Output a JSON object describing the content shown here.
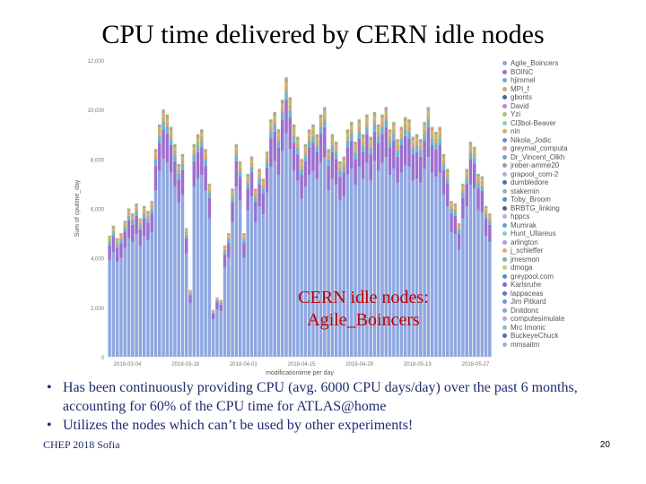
{
  "slide": {
    "title": "CPU time delivered by CERN idle nodes",
    "overlay_label": "CERN idle nodes:\nAgile_Boincers",
    "bullets": [
      "Has been continuously providing CPU (avg. 6000 CPU days/day) over the past 6 months, accounting for 60% of the CPU time for ATLAS@home",
      "Utilizes the nodes which can’t be used by other experiments!"
    ],
    "footer": "CHEP 2018 Sofia",
    "page_number": "20"
  },
  "chart_data": {
    "type": "bar",
    "stacked": true,
    "xlabel": "modificationtime per day",
    "ylabel": "Sum of cputime_day",
    "ylim": [
      0,
      12000
    ],
    "yticks": [
      "0",
      "2,000",
      "4,000",
      "6,000",
      "8,000",
      "10,000",
      "12,000"
    ],
    "xtick_labels": [
      "2018-03-04",
      "2018-03-18",
      "2018-04-01",
      "2018-04-15",
      "2018-04-29",
      "2018-05-13",
      "2018-05-27"
    ],
    "grid": false,
    "legend_position": "right",
    "bar_totals": [
      4900,
      5300,
      4800,
      5000,
      5500,
      6000,
      5800,
      6200,
      5600,
      6100,
      5900,
      6300,
      8400,
      9400,
      10000,
      9800,
      9300,
      8600,
      7800,
      8200,
      5200,
      2700,
      8600,
      9000,
      9200,
      8400,
      7000,
      1900,
      2400,
      2300,
      4500,
      5000,
      6800,
      8600,
      7900,
      5000,
      7400,
      8100,
      6800,
      7600,
      7200,
      8300,
      9600,
      9900,
      9200,
      10400,
      11300,
      10500,
      9400,
      8900,
      8000,
      8600,
      9200,
      9400,
      9000,
      9800,
      10100,
      8400,
      9000,
      8700,
      7900,
      8100,
      9200,
      9500,
      8700,
      9600,
      9000,
      9800,
      8900,
      9900,
      9400,
      9800,
      10100,
      9200,
      9500,
      8800,
      9300,
      9700,
      9600,
      8900,
      9000,
      8800,
      9500,
      10100,
      9300,
      9100,
      9300,
      8200,
      7600,
      6300,
      6200,
      5400,
      7000,
      7600,
      8700,
      8500,
      7400,
      7300,
      6100,
      5800
    ],
    "series_colors": [
      "#8fa7e0",
      "#9b6fcf",
      "#6fb3c6",
      "#d9a36a",
      "#b0c46a",
      "#e28a8a",
      "#7dc78a"
    ],
    "legend": [
      {
        "name": "Agile_Boincers",
        "color": "#8fa7e0"
      },
      {
        "name": "BOINC",
        "color": "#9b6fcf"
      },
      {
        "name": "hjimmel",
        "color": "#6fb3c6"
      },
      {
        "name": "MPI_f",
        "color": "#d9a36a"
      },
      {
        "name": "gbonts",
        "color": "#3a6ea5"
      },
      {
        "name": "David",
        "color": "#c084d6"
      },
      {
        "name": "Yzi",
        "color": "#b0c46a"
      },
      {
        "name": "Cl3bol-Beaver",
        "color": "#8fd0c4"
      },
      {
        "name": "nin",
        "color": "#e2a56b"
      },
      {
        "name": "Nikola_Jodic",
        "color": "#6b8fd6"
      },
      {
        "name": "greymal_computa",
        "color": "#d98fa0"
      },
      {
        "name": "Dr_Vincent_Olkh",
        "color": "#7da0c9"
      },
      {
        "name": "jreber-amme20",
        "color": "#9e9e9e"
      },
      {
        "name": "grapool_com-2",
        "color": "#c9a0dc"
      },
      {
        "name": "dumbledore",
        "color": "#4a6fb5"
      },
      {
        "name": "stakemin",
        "color": "#7ec0a5"
      },
      {
        "name": "Toby_Broom",
        "color": "#4a90c2"
      },
      {
        "name": "BRBTG_linking",
        "color": "#5a5a8a"
      },
      {
        "name": "hppcs",
        "color": "#a0b8e8"
      },
      {
        "name": "Mumrak",
        "color": "#6a9fd0"
      },
      {
        "name": "Hunt_Ullareus",
        "color": "#8fc7d0"
      },
      {
        "name": "arlington",
        "color": "#b59ad9"
      },
      {
        "name": "j_schleffer",
        "color": "#f0a46a"
      },
      {
        "name": "jmesmon",
        "color": "#7fb0a0"
      },
      {
        "name": "dmoga",
        "color": "#c8d070"
      },
      {
        "name": "greypool.com",
        "color": "#4a8fc2"
      },
      {
        "name": "Karlsruhe",
        "color": "#7a6fc7"
      },
      {
        "name": "lappaceas",
        "color": "#5580c0"
      },
      {
        "name": "Jim Pitkard",
        "color": "#6a9ad0"
      },
      {
        "name": "Dnitdonc",
        "color": "#8aa0d8"
      },
      {
        "name": "computesimulate",
        "color": "#c0a0e0"
      },
      {
        "name": "Mrc Imonic",
        "color": "#90c0b0"
      },
      {
        "name": "BuckeyeChuck",
        "color": "#4a6fb5"
      },
      {
        "name": "mmsaitm",
        "color": "#a0b0d8"
      }
    ]
  }
}
